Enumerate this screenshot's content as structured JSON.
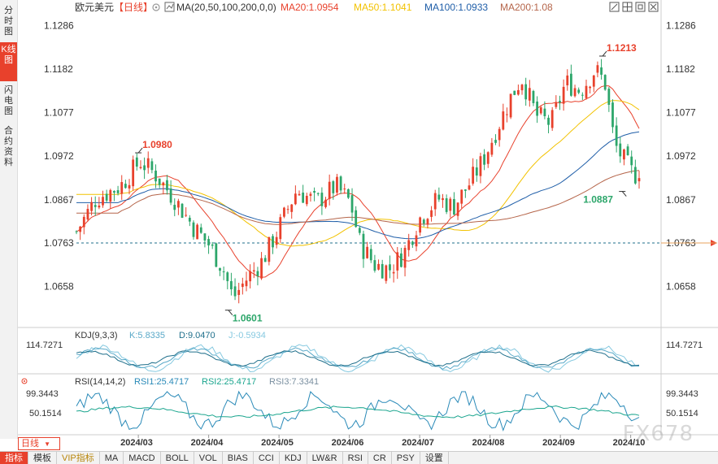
{
  "sidebar": {
    "tabs": [
      {
        "label": "分时图",
        "active": false
      },
      {
        "label": "K线图",
        "active": true
      },
      {
        "label": "闪电图",
        "active": false
      },
      {
        "label": "合约资料",
        "active": false
      }
    ]
  },
  "header": {
    "symbol": "欧元美元",
    "period": "【日线】",
    "period_icon": "settings-gear-icon",
    "ma_label": "MA(20,50,100,200,0,0)",
    "ma20": "MA20:1.0954",
    "ma50": "MA50:1.1041",
    "ma100": "MA100:1.0933",
    "ma200": "MA200:1.08",
    "toolbar_icons": [
      "fullscreen-icon",
      "layout-icon",
      "restore-icon",
      "close-icon"
    ]
  },
  "kdj_header": {
    "label": "KDJ(9,3,3)",
    "k": "K:5.8335",
    "d": "D:9.0470",
    "j": "J:-0.5934"
  },
  "rsi_header": {
    "label": "RSI(14,14,2)",
    "rsi1": "RSI1:25.4717",
    "rsi2": "RSI2:25.4717",
    "rsi3": "RSI3:7.3341"
  },
  "colors": {
    "up": "#e8412c",
    "down": "#2ca66a",
    "ma20": "#e8412c",
    "ma50": "#f2c200",
    "ma100": "#1f5ea8",
    "ma200": "#b5654a",
    "accent": "#e8412c",
    "kdj_k": "#5aa9c8",
    "kdj_d": "#1f6f8b",
    "kdj_j": "#86c9e0",
    "rsi1": "#2a8ab8",
    "rsi2": "#1aa58e"
  },
  "period_selector": "日线",
  "bottom_tabs": [
    {
      "label": "指标",
      "active": true,
      "vip": false
    },
    {
      "label": "模板",
      "active": false,
      "vip": false
    },
    {
      "label": "VIP指标",
      "active": false,
      "vip": true
    },
    {
      "label": "MA",
      "active": false,
      "vip": false
    },
    {
      "label": "MACD",
      "active": false,
      "vip": false
    },
    {
      "label": "BOLL",
      "active": false,
      "vip": false
    },
    {
      "label": "VOL",
      "active": false,
      "vip": false
    },
    {
      "label": "BIAS",
      "active": false,
      "vip": false
    },
    {
      "label": "CCI",
      "active": false,
      "vip": false
    },
    {
      "label": "KDJ",
      "active": false,
      "vip": false
    },
    {
      "label": "LW&R",
      "active": false,
      "vip": false
    },
    {
      "label": "RSI",
      "active": false,
      "vip": false
    },
    {
      "label": "CR",
      "active": false,
      "vip": false
    },
    {
      "label": "PSY",
      "active": false,
      "vip": false
    },
    {
      "label": "设置",
      "active": false,
      "vip": false
    }
  ],
  "watermark": "FX678",
  "chart_data": {
    "type": "candlestick",
    "price_axis": {
      "ylim": [
        1.0575,
        1.1305
      ],
      "ticks": [
        "1.1286",
        "1.1182",
        "1.1077",
        "1.0972",
        "1.0867",
        "1.0763",
        "1.0658"
      ]
    },
    "x_labels": [
      "2024/03",
      "2024/04",
      "2024/05",
      "2024/06",
      "2024/07",
      "2024/08",
      "2024/09",
      "2024/10"
    ],
    "current_price": "1.0763",
    "annotations": [
      {
        "label": "1.0980",
        "value": 1.098,
        "date": "2024/03"
      },
      {
        "label": "1.0601",
        "value": 1.0601,
        "date": "2024/04"
      },
      {
        "label": "1.1213",
        "value": 1.1213,
        "date": "2024/09"
      },
      {
        "label": "1.0887",
        "value": 1.0887,
        "date": "2024/10"
      }
    ],
    "kdj_axis": {
      "ticks": [
        "114.7271"
      ]
    },
    "rsi_axis": {
      "ticks": [
        "99.3443",
        "50.1514"
      ]
    }
  }
}
